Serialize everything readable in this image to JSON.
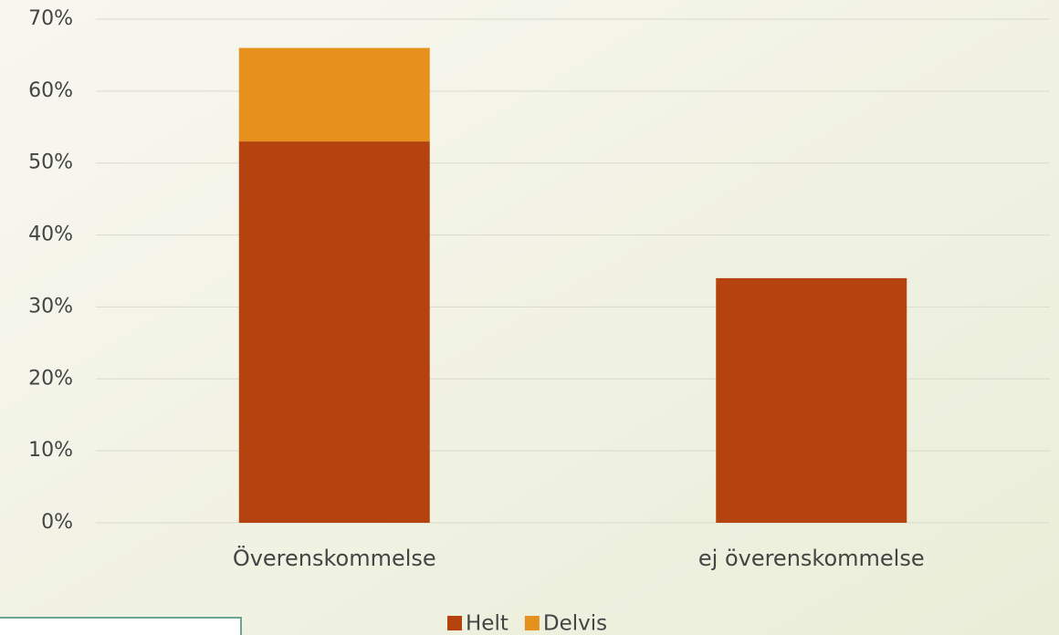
{
  "chart_data": {
    "type": "stacked_bar",
    "categories": [
      "Överenskommelse",
      "ej överenskommelse"
    ],
    "series": [
      {
        "name": "Helt",
        "color": "#b5430f",
        "values": [
          53,
          34
        ]
      },
      {
        "name": "Delvis",
        "color": "#e6911e",
        "values": [
          13,
          0
        ]
      }
    ],
    "ylim": [
      0,
      70
    ],
    "yticks": [
      {
        "value": 0,
        "label": "0%"
      },
      {
        "value": 10,
        "label": "10%"
      },
      {
        "value": 20,
        "label": "20%"
      },
      {
        "value": 30,
        "label": "30%"
      },
      {
        "value": 40,
        "label": "40%"
      },
      {
        "value": 50,
        "label": "50%"
      },
      {
        "value": 60,
        "label": "60%"
      },
      {
        "value": 70,
        "label": "70%"
      }
    ],
    "grid": true,
    "legend": "bottom"
  }
}
